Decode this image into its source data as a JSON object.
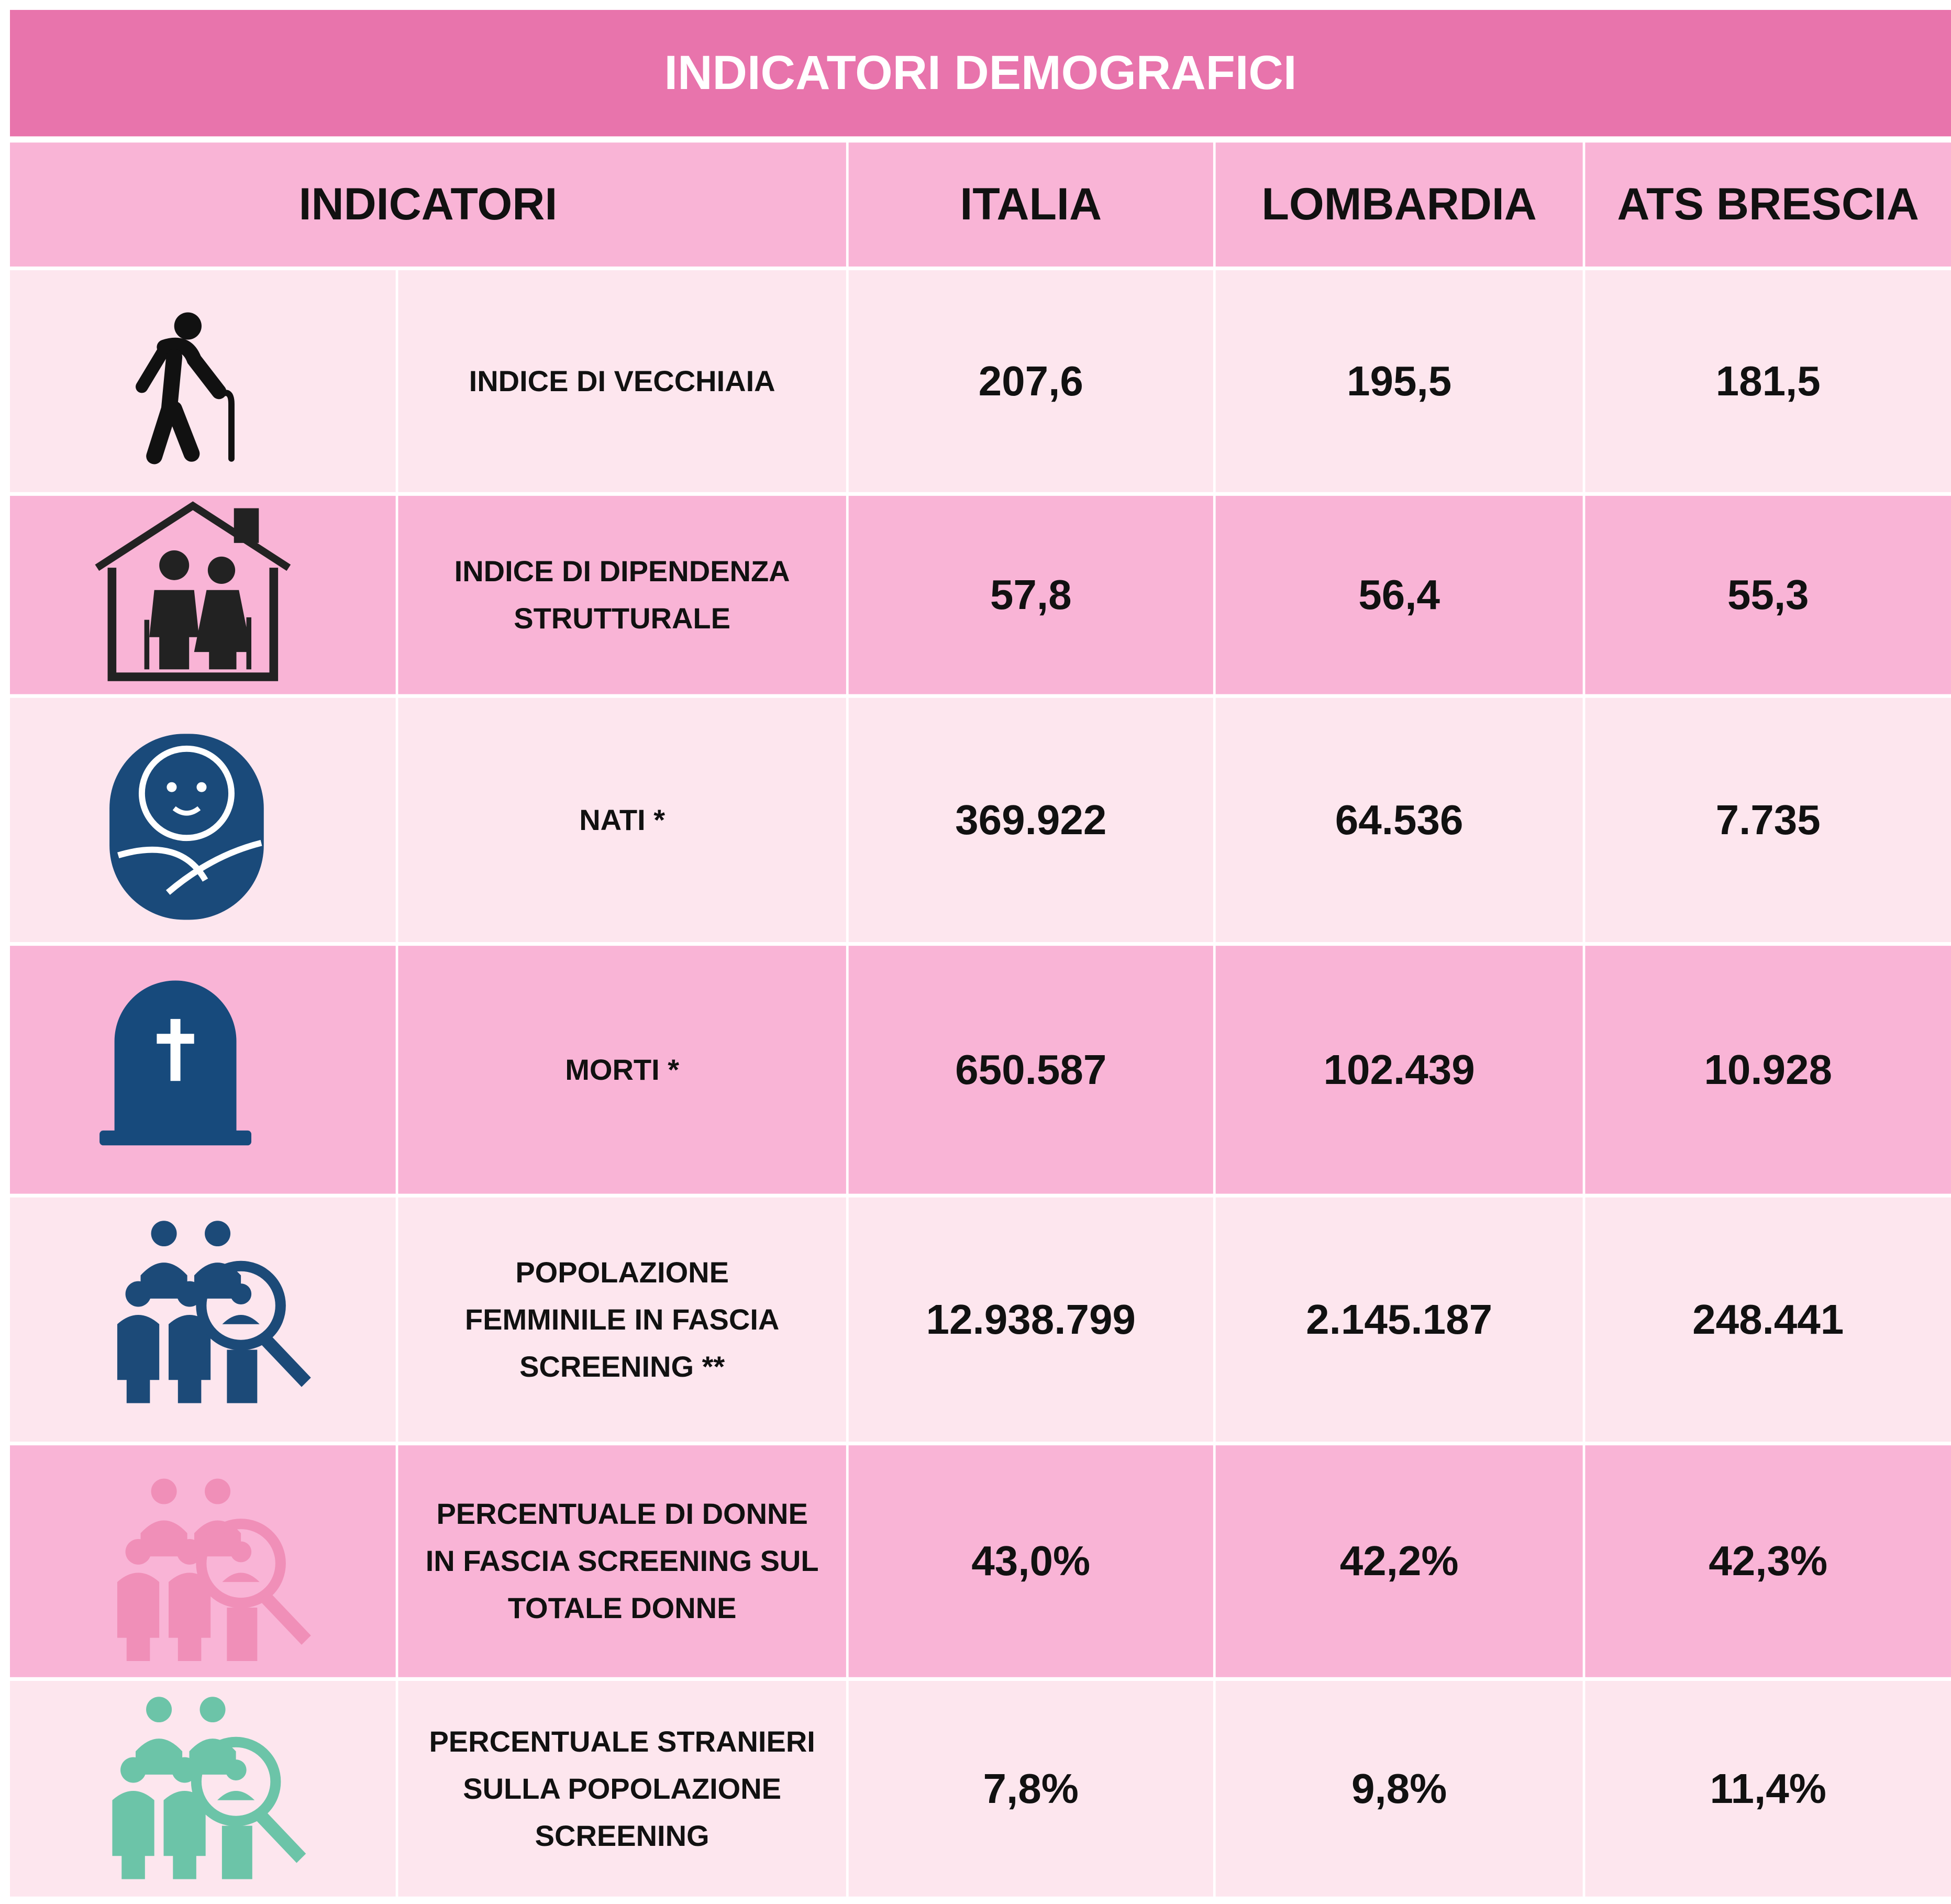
{
  "header": {
    "title": "INDICATORI DEMOGRAFICI"
  },
  "table": {
    "columns": [
      "INDICATORI",
      "ITALIA",
      "LOMBARDIA",
      "ATS BRESCIA"
    ],
    "rows": [
      {
        "label": [
          "INDICE DI VECCHIAIA"
        ],
        "values": [
          "207,6",
          "195,5",
          "181,5"
        ]
      },
      {
        "label": [
          "INDICE DI DIPENDENZA",
          "STRUTTURALE"
        ],
        "values": [
          "57,8",
          "56,4",
          "55,3"
        ]
      },
      {
        "label": [
          "NATI *"
        ],
        "values": [
          "369.922",
          "64.536",
          "7.735"
        ]
      },
      {
        "label": [
          "MORTI *"
        ],
        "values": [
          "650.587",
          "102.439",
          "10.928"
        ]
      },
      {
        "label": [
          "POPOLAZIONE",
          "FEMMINILE  IN FASCIA",
          "SCREENING **"
        ],
        "values": [
          "12.938.799",
          "2.145.187",
          "248.441"
        ]
      },
      {
        "label": [
          "PERCENTUALE DI DONNE",
          "IN FASCIA SCREENING SUL",
          "TOTALE DONNE"
        ],
        "values": [
          "43,0%",
          "42,2%",
          "42,3%"
        ]
      },
      {
        "label": [
          "PERCENTUALE STRANIERI",
          "SULLA POPOLAZIONE",
          "SCREENING"
        ],
        "values": [
          "7,8%",
          "9,8%",
          "11,4%"
        ]
      }
    ]
  }
}
